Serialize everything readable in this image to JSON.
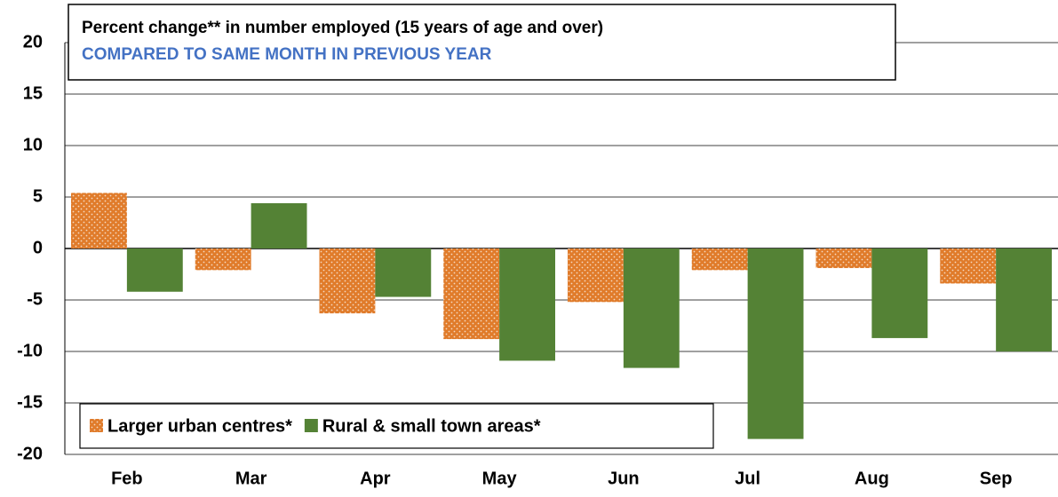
{
  "chart_data": {
    "type": "bar",
    "title": "Percent change** in number employed (15 years of age and over)",
    "subtitle": "COMPARED TO SAME MONTH IN PREVIOUS YEAR",
    "categories": [
      "Feb",
      "Mar",
      "Apr",
      "May",
      "Jun",
      "Jul",
      "Aug",
      "Sep"
    ],
    "series": [
      {
        "name": "Larger urban centres*",
        "color": "#e07b2a",
        "pattern": "dots",
        "values": [
          5.4,
          -2.1,
          -6.3,
          -8.8,
          -5.2,
          -2.1,
          -1.9,
          -3.4
        ]
      },
      {
        "name": "Rural & small town areas*",
        "color": "#548235",
        "values": [
          -4.2,
          4.4,
          -4.7,
          -10.9,
          -11.6,
          -18.5,
          -8.7,
          -10.0
        ]
      }
    ],
    "ylim": [
      -20,
      20
    ],
    "yticks": [
      -20,
      -15,
      -10,
      -5,
      0,
      5,
      10,
      15,
      20
    ],
    "grid": true,
    "legend": "bottom-left"
  }
}
